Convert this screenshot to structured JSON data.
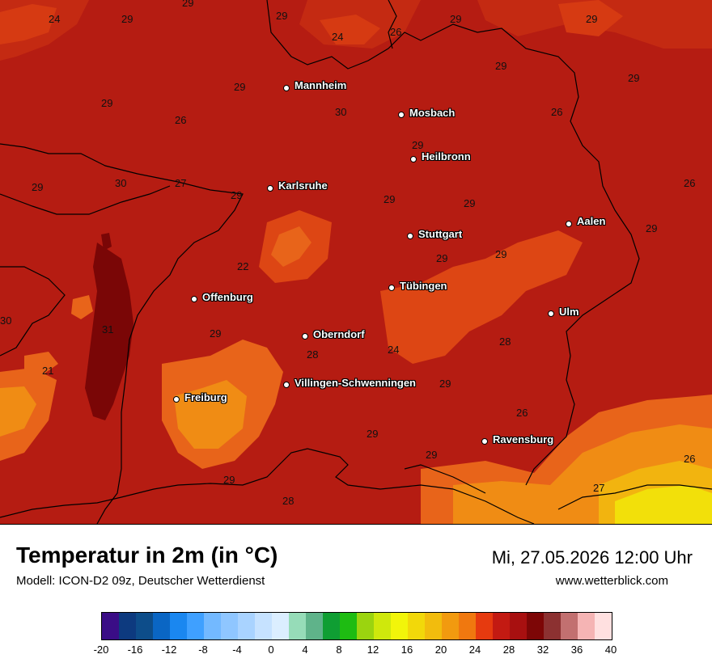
{
  "title": "Temperatur in 2m (in °C)",
  "model": "Modell: ICON-D2 09z, Deutscher Wetterdienst",
  "datetime": "Mi, 27.05.2026 12:00 Uhr",
  "website": "www.wetterblick.com",
  "cities": [
    {
      "name": "Mannheim"
    },
    {
      "name": "Mosbach"
    },
    {
      "name": "Heilbronn"
    },
    {
      "name": "Karlsruhe"
    },
    {
      "name": "Stuttgart"
    },
    {
      "name": "Aalen"
    },
    {
      "name": "Tübingen"
    },
    {
      "name": "Offenburg"
    },
    {
      "name": "Ulm"
    },
    {
      "name": "Oberndorf"
    },
    {
      "name": "Villingen-Schwenningen"
    },
    {
      "name": "Freiburg"
    },
    {
      "name": "Ravensburg"
    }
  ],
  "values": [
    "24",
    "29",
    "29",
    "29",
    "26",
    "29",
    "24",
    "29",
    "29",
    "29",
    "29",
    "30",
    "26",
    "26",
    "29",
    "29",
    "30",
    "27",
    "29",
    "29",
    "29",
    "29",
    "26",
    "29",
    "22",
    "29",
    "30",
    "31",
    "29",
    "28",
    "24",
    "28",
    "21",
    "29",
    "29",
    "26",
    "29",
    "26",
    "29",
    "28",
    "27",
    "29"
  ],
  "legend": {
    "colors": [
      "#3a0d86",
      "#0d3a7f",
      "#0d4d8a",
      "#0a66c4",
      "#1a87f0",
      "#3fa0ff",
      "#73b9ff",
      "#8fc6ff",
      "#a9d3ff",
      "#c6e2ff",
      "#dbeeff",
      "#96dcb8",
      "#5fb38a",
      "#0f9e33",
      "#1ebc12",
      "#9bd40f",
      "#cfe80c",
      "#f2f50a",
      "#f2d80a",
      "#f2bc0d",
      "#f29a0f",
      "#f0780f",
      "#e63a0f",
      "#c31a12",
      "#a81010",
      "#7d0606",
      "#8c3131",
      "#c27070",
      "#f5b4b4",
      "#ffe0e0"
    ],
    "ticks": [
      "-20",
      "-16",
      "-12",
      "-8",
      "-4",
      "0",
      "4",
      "8",
      "12",
      "16",
      "20",
      "24",
      "28",
      "32",
      "36",
      "40"
    ]
  }
}
